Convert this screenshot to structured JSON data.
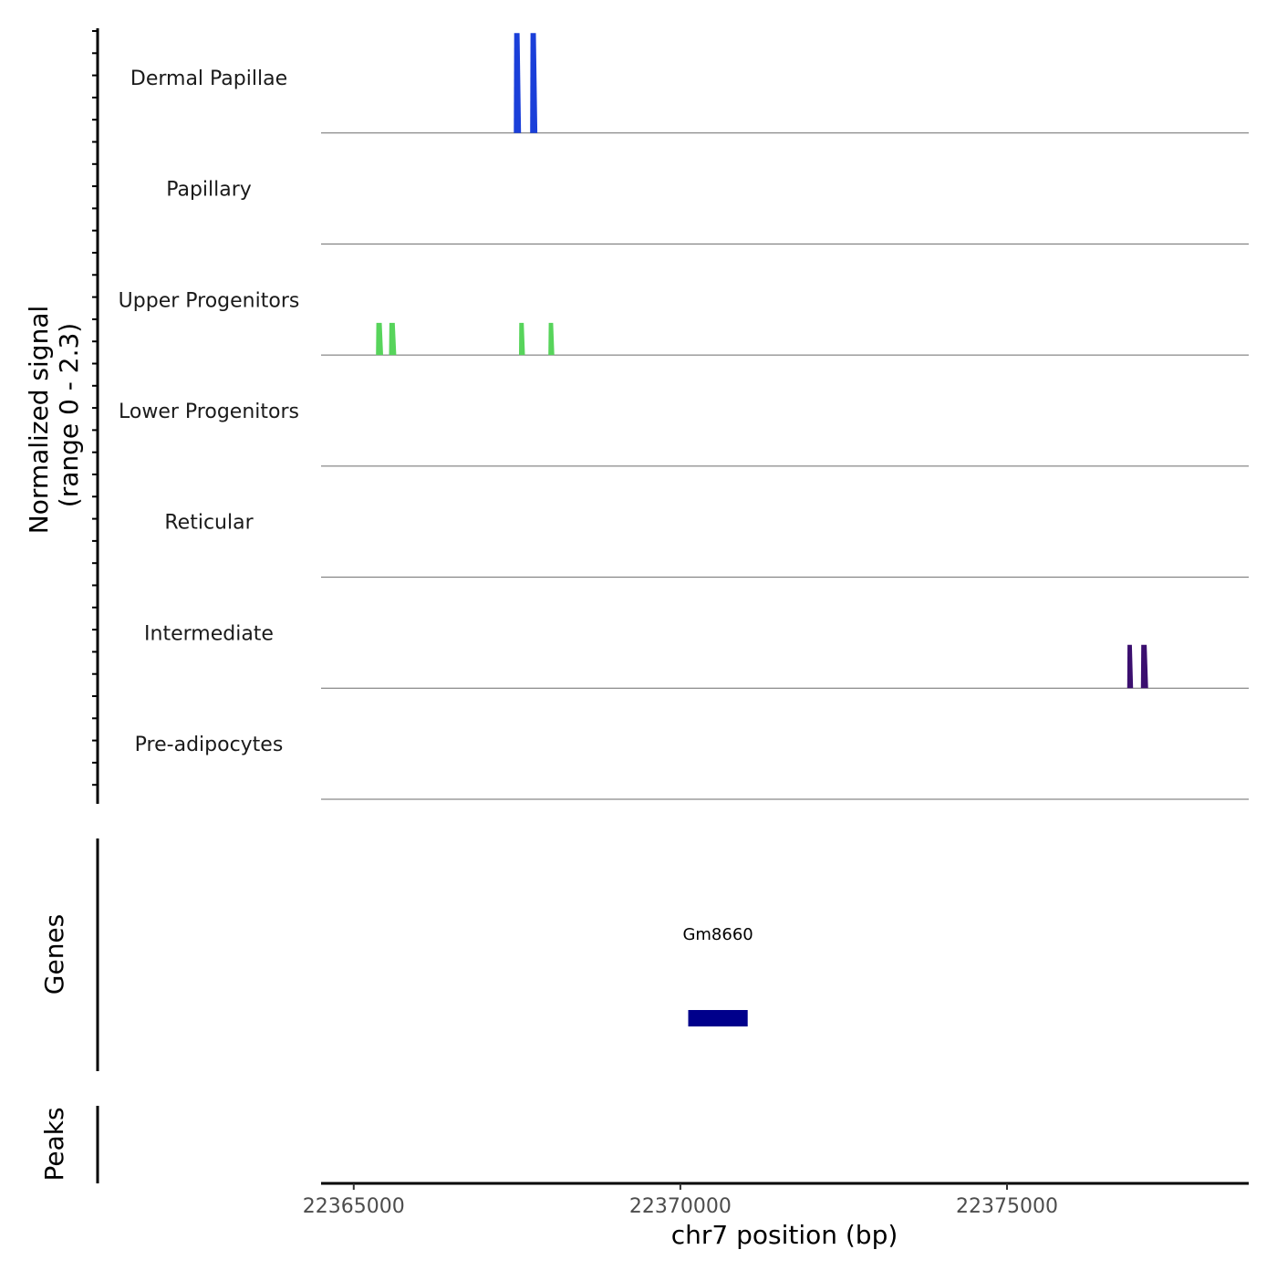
{
  "chart_data": {
    "type": "genome-tracks",
    "chromosome": "chr7",
    "xlabel": "chr7 position (bp)",
    "xlim": [
      22364500,
      22378700
    ],
    "x_ticks": [
      22365000,
      22370000,
      22375000
    ],
    "x_tick_labels": [
      "22365000",
      "22370000",
      "22375000"
    ],
    "coverage": {
      "ylabel_line1": "Normalized signal",
      "ylabel_line2": "(range 0 - 2.3)",
      "ylim": [
        0,
        2.3
      ],
      "tracks": [
        {
          "name": "Dermal Papillae",
          "color": "#1a3fd9",
          "peaks": [
            {
              "start": 22367450,
              "end": 22367560,
              "value": 2.3
            },
            {
              "start": 22367700,
              "end": 22367810,
              "value": 2.3
            }
          ]
        },
        {
          "name": "Papillary",
          "color": "#2f6fd0",
          "peaks": []
        },
        {
          "name": "Upper Progenitors",
          "color": "#57d45b",
          "peaks": [
            {
              "start": 22365340,
              "end": 22365450,
              "value": 0.74
            },
            {
              "start": 22365540,
              "end": 22365650,
              "value": 0.74
            },
            {
              "start": 22367530,
              "end": 22367620,
              "value": 0.74
            },
            {
              "start": 22367980,
              "end": 22368070,
              "value": 0.74
            }
          ]
        },
        {
          "name": "Lower Progenitors",
          "color": "#2fb47c",
          "peaks": []
        },
        {
          "name": "Reticular",
          "color": "#20908c",
          "peaks": []
        },
        {
          "name": "Intermediate",
          "color": "#3b0f6f",
          "peaks": [
            {
              "start": 22376840,
              "end": 22376930,
              "value": 1.0
            },
            {
              "start": 22377050,
              "end": 22377160,
              "value": 1.0
            }
          ]
        },
        {
          "name": "Pre-adipocytes",
          "color": "#440154",
          "peaks": []
        }
      ]
    },
    "genes": {
      "label": "Genes",
      "items": [
        {
          "name": "Gm8660",
          "start": 22370120,
          "end": 22371030,
          "color": "#00008b"
        }
      ]
    },
    "peaks_track": {
      "label": "Peaks",
      "items": []
    }
  }
}
